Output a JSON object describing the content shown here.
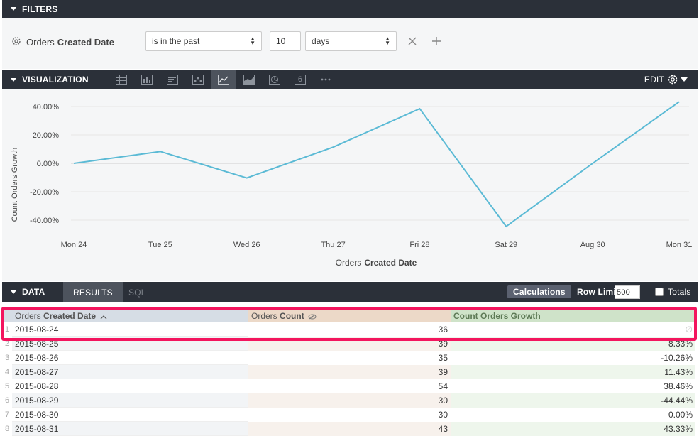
{
  "filters": {
    "title": "FILTERS",
    "field_prefix": "Orders",
    "field_name": "Created Date",
    "operator": "is in the past",
    "value": "10",
    "unit": "days"
  },
  "visualization": {
    "title": "VISUALIZATION",
    "edit_label": "EDIT",
    "icons": [
      "table-icon",
      "column-chart-icon",
      "bar-chart-icon",
      "scatter-icon",
      "line-chart-icon",
      "area-chart-icon",
      "pie-chart-icon",
      "single-value-icon",
      "more-icon"
    ],
    "single_value_glyph": "6"
  },
  "chart_data": {
    "type": "line",
    "categories": [
      "Mon 24",
      "Tue 25",
      "Wed 26",
      "Thu 27",
      "Fri 28",
      "Sat 29",
      "Aug 30",
      "Mon 31"
    ],
    "series": [
      {
        "values": [
          0,
          8.33,
          -10.26,
          11.43,
          38.46,
          -44.44,
          0,
          43.33
        ]
      }
    ],
    "y_ticks": [
      "40.00%",
      "20.00%",
      "0.00%",
      "-20.00%",
      "-40.00%"
    ],
    "ylim": [
      -48,
      48
    ],
    "ylabel": "Count Orders Growth",
    "xlabel_prefix": "Orders",
    "xlabel_bold": "Created Date",
    "line_color": "#5bbad5",
    "grid": true
  },
  "data": {
    "title": "DATA",
    "tab_results": "RESULTS",
    "tab_sql": "SQL",
    "calculations": "Calculations",
    "row_limit_label": "Row Limit",
    "row_limit": "500",
    "totals_label": "Totals",
    "columns": [
      {
        "prefix": "Orders",
        "name": "Created Date",
        "suffix": "^"
      },
      {
        "prefix": "Orders",
        "name": "Count",
        "suffix": ""
      },
      {
        "prefix": "",
        "name": "Count Orders Growth",
        "suffix": ""
      }
    ],
    "null_glyph": "∅",
    "rows": [
      {
        "n": "1",
        "date": "2015-08-24",
        "count": "36",
        "growth": null
      },
      {
        "n": "2",
        "date": "2015-08-25",
        "count": "39",
        "growth": "8.33%"
      },
      {
        "n": "3",
        "date": "2015-08-26",
        "count": "35",
        "growth": "-10.26%"
      },
      {
        "n": "4",
        "date": "2015-08-27",
        "count": "39",
        "growth": "11.43%"
      },
      {
        "n": "5",
        "date": "2015-08-28",
        "count": "54",
        "growth": "38.46%"
      },
      {
        "n": "6",
        "date": "2015-08-29",
        "count": "30",
        "growth": "-44.44%"
      },
      {
        "n": "7",
        "date": "2015-08-30",
        "count": "30",
        "growth": "0.00%"
      },
      {
        "n": "8",
        "date": "2015-08-31",
        "count": "43",
        "growth": "43.33%"
      }
    ]
  }
}
